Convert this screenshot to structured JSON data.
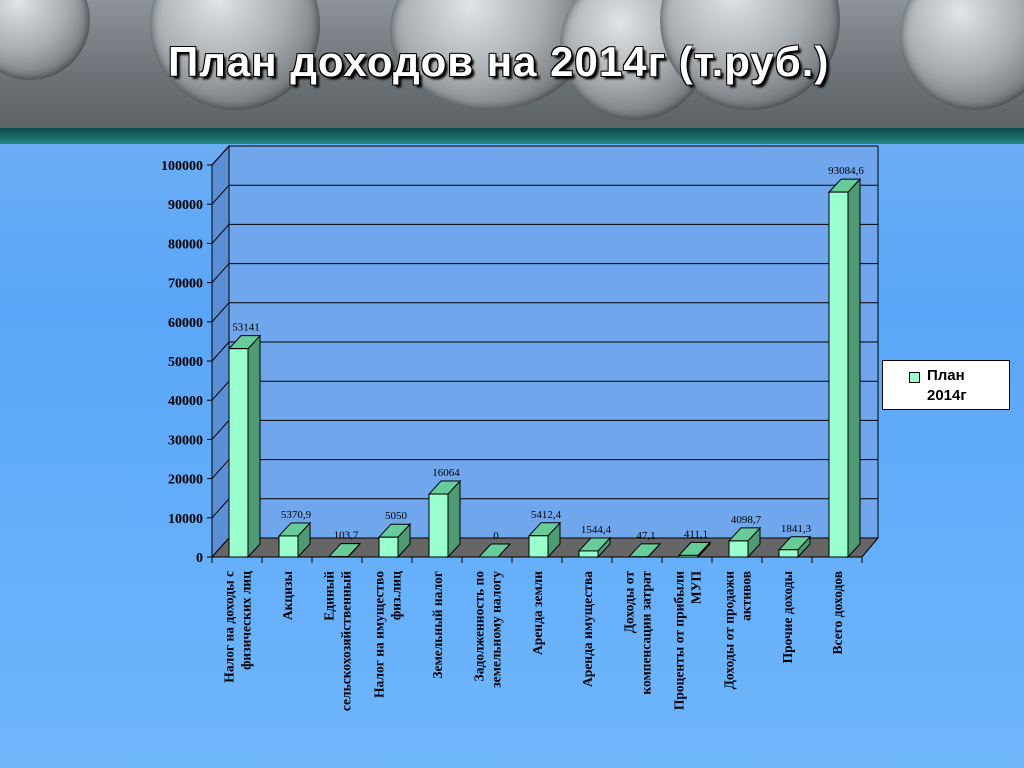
{
  "header": {
    "title": "План доходов на 2014г (т.руб.)"
  },
  "colors": {
    "bar_front": "#99ffcc",
    "bar_top": "#66cc99",
    "bar_side": "#4d9a73",
    "floor": "#666666",
    "plot_back": "#6fa6ec"
  },
  "chart_data": {
    "type": "bar",
    "categories": [
      "Налог на доходы с физических лиц",
      "Акцизы",
      "Единый сельскохозяйственный",
      "Налог на имущество физ.лиц",
      "Земельный налог",
      "Задолженность по земельному налогу",
      "Аренда земли",
      "Аренда имущества",
      "Доходы от компенсации затрат",
      "Проценты от прибыли МУП",
      "Доходы от продажи активов",
      "Прочие доходы",
      "Всего доходов"
    ],
    "series": [
      {
        "name": "План 2014г",
        "values": [
          53141,
          5370.9,
          103.7,
          5050,
          16064,
          0,
          5412.4,
          1544.4,
          47.1,
          411.1,
          4098.7,
          1841.3,
          93084.6
        ],
        "labels": [
          "53141",
          "5370,9",
          "103,7",
          "5050",
          "16064",
          "0",
          "5412,4",
          "1544,4",
          "47,1",
          "411,1",
          "4098,7",
          "1841,3",
          "93084,6"
        ]
      }
    ],
    "ylim": [
      0,
      100000
    ],
    "yticks": [
      "0",
      "10000",
      "20000",
      "30000",
      "40000",
      "50000",
      "60000",
      "70000",
      "80000",
      "90000",
      "100000"
    ],
    "grid": true,
    "legend_position": "right",
    "legend": [
      "План",
      "2014г"
    ]
  }
}
